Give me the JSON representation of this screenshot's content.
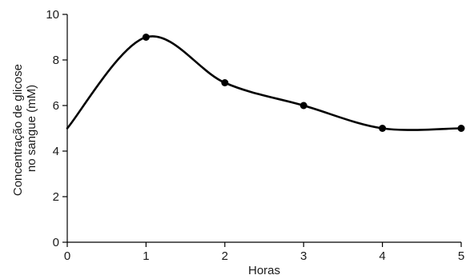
{
  "chart_data": {
    "type": "line",
    "title": "",
    "xlabel": "Horas",
    "ylabel_lines": [
      "Concentração de glicose",
      "no sangue (mM)"
    ],
    "xlim": [
      0,
      5
    ],
    "ylim": [
      0,
      10
    ],
    "x_ticks": [
      0,
      1,
      2,
      3,
      4,
      5
    ],
    "y_ticks": [
      0,
      2,
      4,
      6,
      8,
      10
    ],
    "grid": false,
    "series": [
      {
        "x": [
          0,
          1,
          2,
          3,
          4,
          5
        ],
        "y": [
          5,
          9,
          7,
          6,
          5,
          5
        ],
        "markers_at_x": [
          1,
          2,
          3,
          4,
          5
        ],
        "smooth": true,
        "color": "#000000"
      }
    ]
  }
}
